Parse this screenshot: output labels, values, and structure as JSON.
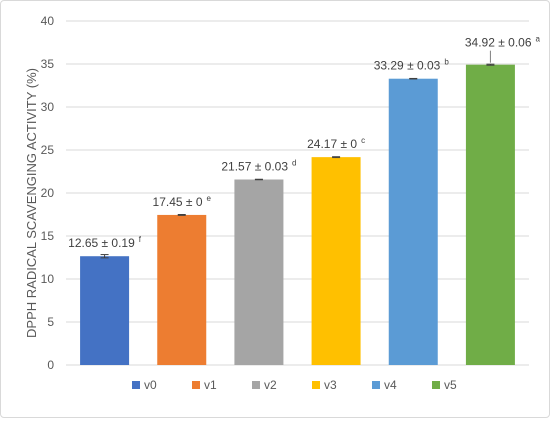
{
  "chart_data": {
    "type": "bar",
    "title": "",
    "xlabel": "",
    "ylabel": "DPPH  RADICAL SCAVENGING ACTIVITY (%)",
    "ylim": [
      0,
      40
    ],
    "yticks": [
      0,
      5,
      10,
      15,
      20,
      25,
      30,
      35,
      40
    ],
    "grid": true,
    "legend_position": "bottom",
    "categories": [
      "v0",
      "v1",
      "v2",
      "v3",
      "v4",
      "v5"
    ],
    "values": [
      12.65,
      17.45,
      21.57,
      24.17,
      33.29,
      34.92
    ],
    "errors": [
      0.19,
      0.05,
      0.03,
      0.05,
      0.03,
      0.06
    ],
    "labels": [
      "12.65 ± 0.19",
      "17.45 ±  0",
      "21.57 ± 0.03",
      "24.17 ± 0",
      "33.29 ± 0.03",
      "34.92 ± 0.06"
    ],
    "superscripts": [
      "f",
      "e",
      "d",
      "c",
      "b",
      "a"
    ],
    "colors": [
      "#4472C4",
      "#ED7D31",
      "#A5A5A5",
      "#FFC000",
      "#5B9BD5",
      "#70AD47"
    ]
  }
}
